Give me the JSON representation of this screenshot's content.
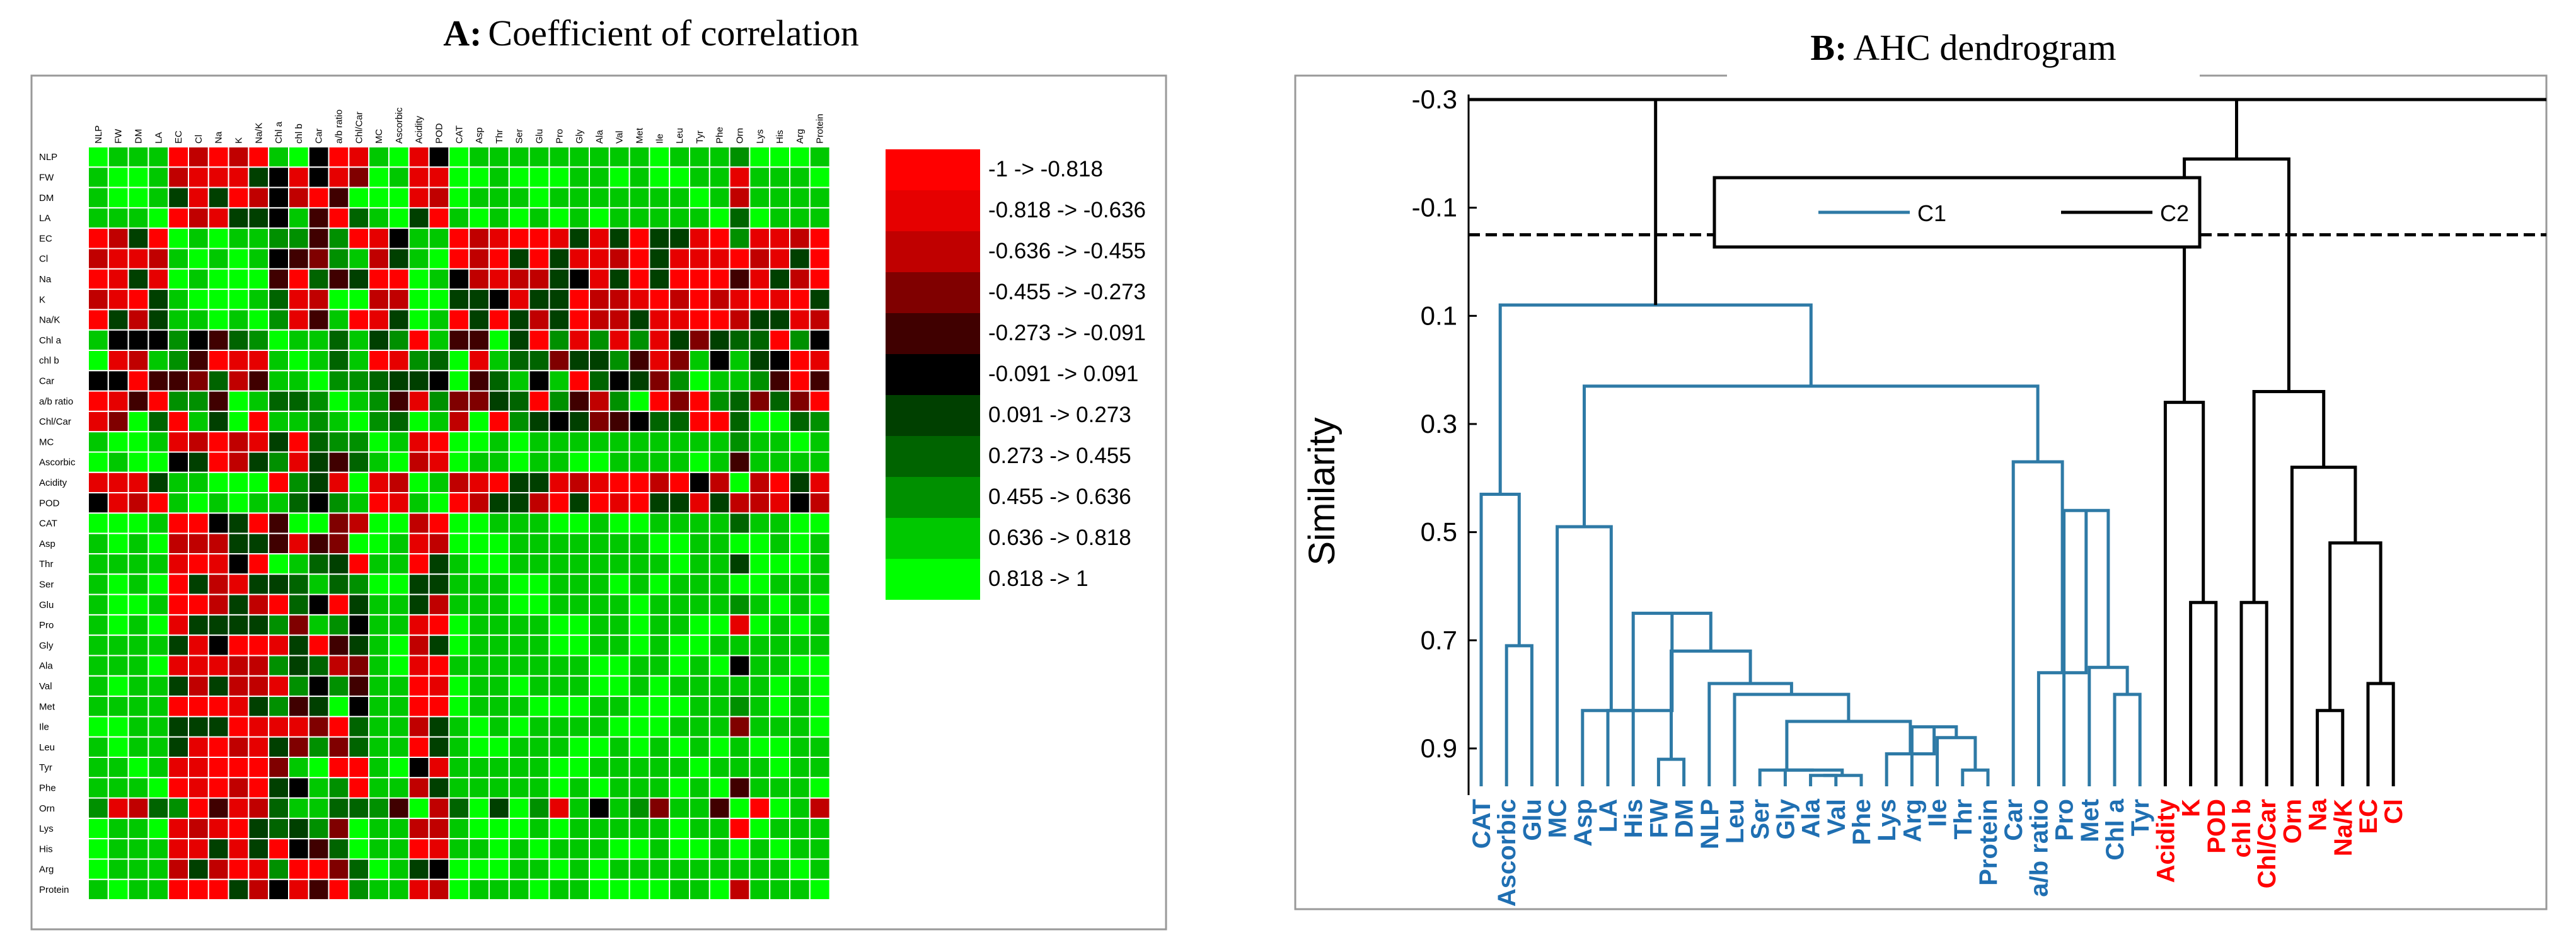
{
  "chart_data": [
    {
      "type": "heatmap",
      "panel_letter": "A:",
      "title": "Coefficient of correlation",
      "variables": [
        "NLP",
        "FW",
        "DM",
        "LA",
        "EC",
        "Cl",
        "Na",
        "K",
        "Na/K",
        "Chl a",
        "chl b",
        "Car",
        "a/b ratio",
        "Chl/Car",
        "MC",
        "Ascorbic",
        "Acidity",
        "POD",
        "CAT",
        "Asp",
        "Thr",
        "Ser",
        "Glu",
        "Pro",
        "Gly",
        "Ala",
        "Val",
        "Met",
        "Ile",
        "Leu",
        "Tyr",
        "Phe",
        "Orn",
        "Lys",
        "His",
        "Arg",
        "Protein"
      ],
      "legend": [
        {
          "label": "-1 -> -0.818",
          "color": "#ff0000"
        },
        {
          "label": "-0.818 -> -0.636",
          "color": "#e60000"
        },
        {
          "label": "-0.636 -> -0.455",
          "color": "#c00000"
        },
        {
          "label": "-0.455 -> -0.273",
          "color": "#800000"
        },
        {
          "label": "-0.273 -> -0.091",
          "color": "#400000"
        },
        {
          "label": "-0.091 -> 0.091",
          "color": "#000000"
        },
        {
          "label": "0.091 -> 0.273",
          "color": "#004000"
        },
        {
          "label": "0.273 -> 0.455",
          "color": "#006400"
        },
        {
          "label": "0.455 -> 0.636",
          "color": "#009000"
        },
        {
          "label": "0.636 -> 0.818",
          "color": "#00c800"
        },
        {
          "label": "0.818 -> 1",
          "color": "#00ff00"
        }
      ]
    },
    {
      "type": "dendrogram",
      "panel_letter": "B:",
      "title": "AHC dendrogram",
      "ylabel": "Similarity",
      "yticks": [
        "-0.3",
        "-0.1",
        "0.1",
        "0.3",
        "0.5",
        "0.7",
        "0.9"
      ],
      "ylim": [
        -0.3,
        0.97
      ],
      "truncation_level": -0.05,
      "leaves": [
        "CAT",
        "Ascorbic",
        "Glu",
        "MC",
        "Asp",
        "LA",
        "His",
        "FW",
        "DM",
        "NLP",
        "Leu",
        "Ser",
        "Gly",
        "Ala",
        "Val",
        "Phe",
        "Lys",
        "Arg",
        "Ile",
        "Thr",
        "Protein",
        "Car",
        "a/b ratio",
        "Pro",
        "Met",
        "Chl a",
        "Tyr",
        "Acidity",
        "K",
        "POD",
        "chl b",
        "Chl/Car",
        "Orn",
        "Na",
        "Na/K",
        "EC",
        "Cl"
      ],
      "leaf_cluster": [
        "C1",
        "C1",
        "C1",
        "C1",
        "C1",
        "C1",
        "C1",
        "C1",
        "C1",
        "C1",
        "C1",
        "C1",
        "C1",
        "C1",
        "C1",
        "C1",
        "C1",
        "C1",
        "C1",
        "C1",
        "C1",
        "C1",
        "C1",
        "C1",
        "C1",
        "C1",
        "C1",
        "C2",
        "C2",
        "C2",
        "C2",
        "C2",
        "C2",
        "C2",
        "C2",
        "C2",
        "C2"
      ],
      "merges": [
        [
          "Ala",
          "Val",
          0.95
        ],
        [
          "Phe",
          "m1",
          0.95
        ],
        [
          "Gly",
          "m2",
          0.94
        ],
        [
          "Ser",
          "m3",
          0.94
        ],
        [
          "Thr",
          "Protein",
          0.94
        ],
        [
          "Ile",
          "m5",
          0.88
        ],
        [
          "Arg",
          "m6",
          0.86
        ],
        [
          "Lys",
          "m7",
          0.91
        ],
        [
          "m4",
          "m8",
          0.85
        ],
        [
          "Leu",
          "m9",
          0.8
        ],
        [
          "NLP",
          "m10",
          0.78
        ],
        [
          "FW",
          "DM",
          0.92
        ],
        [
          "m12",
          "m11",
          0.72
        ],
        [
          "His",
          "m13",
          0.65
        ],
        [
          "LA",
          "m14",
          0.83
        ],
        [
          "Asp",
          "m15",
          0.83
        ],
        [
          "MC",
          "m16",
          0.49
        ],
        [
          "Ascorbic",
          "Glu",
          0.71
        ],
        [
          "CAT",
          "m18",
          0.43
        ],
        [
          "Chl a",
          "Tyr",
          0.8
        ],
        [
          "Met",
          "m20",
          0.75
        ],
        [
          "Pro",
          "m21",
          0.46
        ],
        [
          "a/b ratio",
          "m22",
          0.76
        ],
        [
          "Car",
          "m23",
          0.37
        ],
        [
          "m17",
          "m24",
          0.23
        ],
        [
          "m19",
          "m25",
          0.08
        ],
        [
          "K",
          "POD",
          0.63
        ],
        [
          "Acidity",
          "m27",
          0.26
        ],
        [
          "chl b",
          "Chl/Car",
          0.63
        ],
        [
          "Na",
          "Na/K",
          0.83
        ],
        [
          "EC",
          "Cl",
          0.78
        ],
        [
          "m30",
          "m31",
          0.52
        ],
        [
          "Orn",
          "m32",
          0.38
        ],
        [
          "m29",
          "m33",
          0.24
        ],
        [
          "m28",
          "m34",
          -0.19
        ],
        [
          "m26",
          "m35",
          -0.3
        ]
      ],
      "legend": [
        {
          "label": "C1",
          "color": "#2e7aa6"
        },
        {
          "label": "C2",
          "color": "#000000"
        }
      ],
      "label_colors": {
        "C1": "#1f6fb2",
        "C2": "#ff0000"
      }
    }
  ]
}
